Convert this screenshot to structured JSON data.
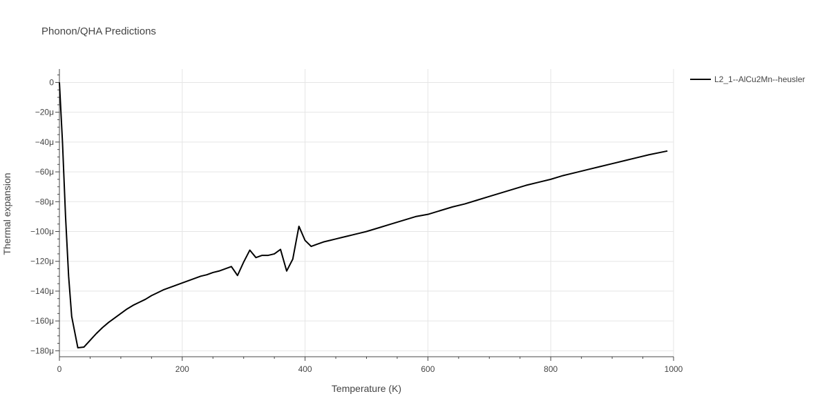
{
  "chart_data": {
    "type": "line",
    "title": "Phonon/QHA Predictions",
    "xlabel": "Temperature (K)",
    "ylabel": "Thermal expansion",
    "xlim": [
      0,
      1000
    ],
    "ylim": [
      -184,
      9
    ],
    "x_ticks": [
      0,
      200,
      400,
      600,
      800,
      1000
    ],
    "x_tick_labels": [
      "0",
      "200",
      "400",
      "600",
      "800",
      "1000"
    ],
    "y_ticks": [
      0,
      -20,
      -40,
      -60,
      -80,
      -100,
      -120,
      -140,
      -160,
      -180
    ],
    "y_tick_labels": [
      "0",
      "−20μ",
      "−40μ",
      "−60μ",
      "−80μ",
      "−100μ",
      "−120μ",
      "−140μ",
      "−160μ",
      "−180μ"
    ],
    "grid": true,
    "legend_position": "top-right",
    "series": [
      {
        "name": "L2_1--AlCu2Mn--heusler",
        "color": "#000000",
        "x": [
          0,
          5,
          10,
          15,
          20,
          30,
          40,
          50,
          60,
          70,
          80,
          90,
          100,
          110,
          120,
          130,
          140,
          150,
          160,
          170,
          180,
          190,
          200,
          210,
          220,
          230,
          240,
          250,
          260,
          270,
          280,
          290,
          300,
          310,
          320,
          330,
          340,
          350,
          360,
          370,
          380,
          390,
          400,
          410,
          420,
          430,
          440,
          450,
          460,
          470,
          480,
          490,
          500,
          520,
          540,
          560,
          580,
          600,
          620,
          640,
          660,
          680,
          700,
          720,
          740,
          760,
          780,
          800,
          820,
          840,
          860,
          880,
          900,
          920,
          940,
          960,
          990
        ],
        "y": [
          0,
          -40,
          -90,
          -130,
          -157,
          -178,
          -177.5,
          -173,
          -168.5,
          -164.5,
          -161,
          -158,
          -155,
          -152,
          -149.5,
          -147.5,
          -145.5,
          -143,
          -141,
          -139,
          -137.5,
          -136,
          -134.5,
          -133,
          -131.5,
          -130,
          -129,
          -127.5,
          -126.5,
          -125,
          -123.5,
          -129.5,
          -120.5,
          -112.5,
          -117.5,
          -116,
          -116,
          -115,
          -112,
          -126.5,
          -118.5,
          -96.5,
          -106,
          -110,
          -108.5,
          -107,
          -106,
          -105,
          -104,
          -103,
          -102,
          -101,
          -100,
          -97.5,
          -95,
          -92.5,
          -90,
          -88.5,
          -86,
          -83.5,
          -81.5,
          -79,
          -76.5,
          -74,
          -71.5,
          -69,
          -67,
          -65,
          -62.5,
          -60.5,
          -58.5,
          -56.5,
          -54.5,
          -52.5,
          -50.5,
          -48.5,
          -46
        ]
      }
    ]
  }
}
